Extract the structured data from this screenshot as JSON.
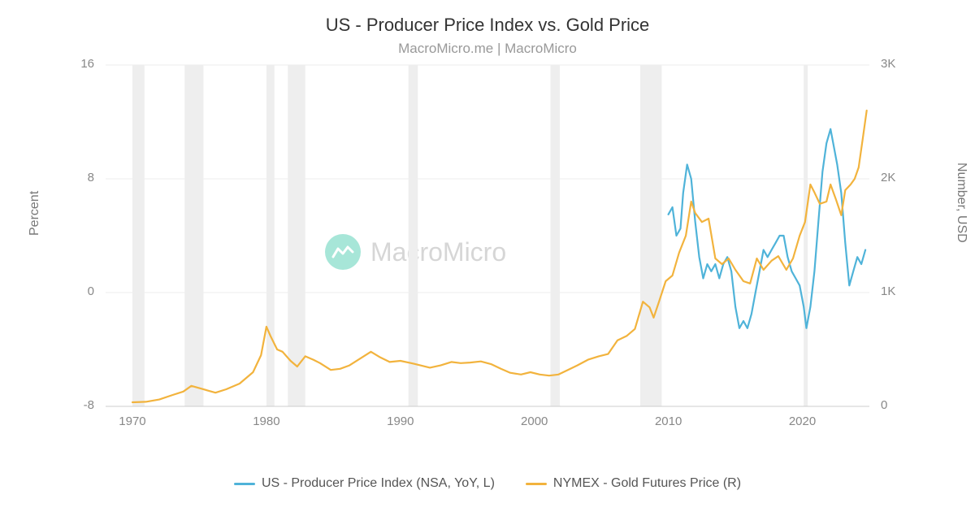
{
  "title": "US - Producer Price Index vs. Gold Price",
  "subtitle": "MacroMicro.me | MacroMicro",
  "watermark_text": "MacroMicro",
  "watermark_color": "#d6d6d6",
  "watermark_icon_bg": "#a7e6d8",
  "background_color": "#ffffff",
  "plot": {
    "x_min": 1968,
    "x_max": 2025,
    "x_ticks": [
      1970,
      1980,
      1990,
      2000,
      2010,
      2020
    ],
    "y_left_min": -8,
    "y_left_max": 16,
    "y_left_ticks": [
      -8,
      0,
      8,
      16
    ],
    "y_left_label": "Percent",
    "y_right_min": 0,
    "y_right_max": 3000,
    "y_right_ticks": [
      0,
      1000,
      2000,
      3000
    ],
    "y_right_tick_labels": [
      "0",
      "1K",
      "2K",
      "3K"
    ],
    "y_right_label": "Number, USD",
    "grid_color": "#eeeeee",
    "axis_color": "#cccccc",
    "recession_color": "#eeeeee",
    "recessions": [
      [
        1970.0,
        1970.9
      ],
      [
        1973.9,
        1975.3
      ],
      [
        1980.0,
        1980.6
      ],
      [
        1981.6,
        1982.9
      ],
      [
        1990.6,
        1991.3
      ],
      [
        2001.2,
        2001.9
      ],
      [
        2007.9,
        2009.5
      ],
      [
        2020.1,
        2020.4
      ]
    ]
  },
  "series": [
    {
      "name": "US - Producer Price Index (NSA, YoY, L)",
      "axis": "left",
      "color": "#4fb3d9",
      "stroke_width": 2.2,
      "data": [
        [
          2010.0,
          5.5
        ],
        [
          2010.3,
          6.0
        ],
        [
          2010.6,
          4.0
        ],
        [
          2010.9,
          4.5
        ],
        [
          2011.1,
          7.0
        ],
        [
          2011.4,
          9.0
        ],
        [
          2011.7,
          8.0
        ],
        [
          2012.0,
          5.0
        ],
        [
          2012.3,
          2.5
        ],
        [
          2012.6,
          1.0
        ],
        [
          2012.9,
          2.0
        ],
        [
          2013.2,
          1.5
        ],
        [
          2013.5,
          2.0
        ],
        [
          2013.8,
          1.0
        ],
        [
          2014.1,
          2.0
        ],
        [
          2014.4,
          2.5
        ],
        [
          2014.7,
          1.5
        ],
        [
          2015.0,
          -1.0
        ],
        [
          2015.3,
          -2.5
        ],
        [
          2015.6,
          -2.0
        ],
        [
          2015.9,
          -2.5
        ],
        [
          2016.2,
          -1.5
        ],
        [
          2016.5,
          0.0
        ],
        [
          2016.8,
          1.5
        ],
        [
          2017.1,
          3.0
        ],
        [
          2017.4,
          2.5
        ],
        [
          2017.7,
          3.0
        ],
        [
          2018.0,
          3.5
        ],
        [
          2018.3,
          4.0
        ],
        [
          2018.6,
          4.0
        ],
        [
          2018.9,
          2.5
        ],
        [
          2019.2,
          1.5
        ],
        [
          2019.5,
          1.0
        ],
        [
          2019.8,
          0.5
        ],
        [
          2020.1,
          -1.0
        ],
        [
          2020.3,
          -2.5
        ],
        [
          2020.6,
          -1.0
        ],
        [
          2020.9,
          1.5
        ],
        [
          2021.2,
          5.0
        ],
        [
          2021.5,
          8.5
        ],
        [
          2021.8,
          10.5
        ],
        [
          2022.1,
          11.5
        ],
        [
          2022.3,
          10.5
        ],
        [
          2022.6,
          9.0
        ],
        [
          2022.9,
          7.0
        ],
        [
          2023.2,
          3.5
        ],
        [
          2023.5,
          0.5
        ],
        [
          2023.8,
          1.5
        ],
        [
          2024.1,
          2.5
        ],
        [
          2024.4,
          2.0
        ],
        [
          2024.7,
          3.0
        ]
      ]
    },
    {
      "name": "NYMEX - Gold Futures Price (R)",
      "axis": "right",
      "color": "#f2b33d",
      "stroke_width": 2.2,
      "data": [
        [
          1970.0,
          36
        ],
        [
          1971.0,
          40
        ],
        [
          1972.0,
          60
        ],
        [
          1973.0,
          100
        ],
        [
          1973.8,
          130
        ],
        [
          1974.4,
          180
        ],
        [
          1975.0,
          160
        ],
        [
          1975.6,
          140
        ],
        [
          1976.2,
          120
        ],
        [
          1977.0,
          150
        ],
        [
          1978.0,
          200
        ],
        [
          1979.0,
          300
        ],
        [
          1979.6,
          450
        ],
        [
          1980.0,
          700
        ],
        [
          1980.3,
          620
        ],
        [
          1980.8,
          500
        ],
        [
          1981.2,
          480
        ],
        [
          1981.8,
          400
        ],
        [
          1982.3,
          350
        ],
        [
          1982.9,
          440
        ],
        [
          1983.5,
          410
        ],
        [
          1984.0,
          380
        ],
        [
          1984.8,
          320
        ],
        [
          1985.5,
          330
        ],
        [
          1986.2,
          360
        ],
        [
          1987.0,
          420
        ],
        [
          1987.8,
          480
        ],
        [
          1988.5,
          430
        ],
        [
          1989.2,
          390
        ],
        [
          1990.0,
          400
        ],
        [
          1990.8,
          380
        ],
        [
          1991.5,
          360
        ],
        [
          1992.2,
          340
        ],
        [
          1993.0,
          360
        ],
        [
          1993.8,
          390
        ],
        [
          1994.5,
          380
        ],
        [
          1995.2,
          385
        ],
        [
          1996.0,
          395
        ],
        [
          1996.8,
          370
        ],
        [
          1997.5,
          330
        ],
        [
          1998.2,
          295
        ],
        [
          1999.0,
          280
        ],
        [
          1999.7,
          300
        ],
        [
          2000.4,
          280
        ],
        [
          2001.1,
          270
        ],
        [
          2001.8,
          280
        ],
        [
          2002.5,
          320
        ],
        [
          2003.2,
          360
        ],
        [
          2004.0,
          410
        ],
        [
          2004.8,
          440
        ],
        [
          2005.5,
          460
        ],
        [
          2006.2,
          580
        ],
        [
          2006.9,
          620
        ],
        [
          2007.5,
          680
        ],
        [
          2008.1,
          920
        ],
        [
          2008.6,
          870
        ],
        [
          2008.9,
          780
        ],
        [
          2009.3,
          920
        ],
        [
          2009.8,
          1100
        ],
        [
          2010.3,
          1150
        ],
        [
          2010.8,
          1350
        ],
        [
          2011.3,
          1500
        ],
        [
          2011.7,
          1800
        ],
        [
          2012.0,
          1700
        ],
        [
          2012.5,
          1620
        ],
        [
          2013.0,
          1650
        ],
        [
          2013.5,
          1300
        ],
        [
          2014.0,
          1250
        ],
        [
          2014.5,
          1300
        ],
        [
          2015.0,
          1200
        ],
        [
          2015.6,
          1100
        ],
        [
          2016.1,
          1080
        ],
        [
          2016.6,
          1300
        ],
        [
          2017.1,
          1200
        ],
        [
          2017.7,
          1280
        ],
        [
          2018.2,
          1320
        ],
        [
          2018.8,
          1200
        ],
        [
          2019.3,
          1300
        ],
        [
          2019.8,
          1500
        ],
        [
          2020.2,
          1620
        ],
        [
          2020.6,
          1950
        ],
        [
          2020.9,
          1880
        ],
        [
          2021.3,
          1780
        ],
        [
          2021.8,
          1800
        ],
        [
          2022.1,
          1950
        ],
        [
          2022.5,
          1820
        ],
        [
          2022.9,
          1680
        ],
        [
          2023.2,
          1900
        ],
        [
          2023.6,
          1950
        ],
        [
          2023.9,
          2000
        ],
        [
          2024.2,
          2100
        ],
        [
          2024.5,
          2350
        ],
        [
          2024.8,
          2600
        ]
      ]
    }
  ],
  "legend": {
    "items": [
      {
        "label": "US - Producer Price Index (NSA, YoY, L)",
        "color": "#4fb3d9"
      },
      {
        "label": "NYMEX - Gold Futures Price (R)",
        "color": "#f2b33d"
      }
    ]
  }
}
